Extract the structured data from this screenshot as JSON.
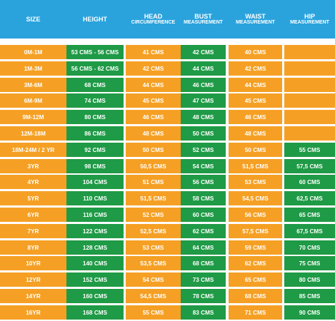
{
  "headers": {
    "size": [
      "SIZE"
    ],
    "height": [
      "HEIGHT"
    ],
    "head": [
      "HEAD",
      "CIRCUMFERENCE"
    ],
    "bust": [
      "BUST",
      "MEASUREMENT"
    ],
    "waist": [
      "WAIST",
      "MEASUREMENT"
    ],
    "hip": [
      "HIP",
      "MEASUREMENT"
    ]
  },
  "colors": {
    "header": "#2aa3dd",
    "orange": "#f5a024",
    "green": "#1f9a46",
    "text": "#ffffff"
  },
  "rows": [
    {
      "size": "0M-1M",
      "height": "53 CMS - 56 CMS",
      "head": "41 CMS",
      "bust": "42 CMS",
      "waist": "40 CMS",
      "hip": ""
    },
    {
      "size": "1M-3M",
      "height": "56 CMS - 62 CMS",
      "head": "42 CMS",
      "bust": "44 CMS",
      "waist": "42 CMS",
      "hip": ""
    },
    {
      "size": "3M-6M",
      "height": "68 CMS",
      "head": "44 CMS",
      "bust": "46 CMS",
      "waist": "44 CMS",
      "hip": ""
    },
    {
      "size": "6M-9M",
      "height": "74 CMS",
      "head": "45 CMS",
      "bust": "47 CMS",
      "waist": "45 CMS",
      "hip": ""
    },
    {
      "size": "9M-12M",
      "height": "80 CMS",
      "head": "46 CMS",
      "bust": "48 CMS",
      "waist": "46 CMS",
      "hip": ""
    },
    {
      "size": "12M-18M",
      "height": "86 CMS",
      "head": "48 CMS",
      "bust": "50 CMS",
      "waist": "48 CMS",
      "hip": ""
    },
    {
      "size": "18M-24M / 2 YR",
      "height": "92 CMS",
      "head": "50 CMS",
      "bust": "52 CMS",
      "waist": "50 CMS",
      "hip": "55 CMS"
    },
    {
      "size": "3YR",
      "height": "98 CMS",
      "head": "50,5 CMS",
      "bust": "54 CMS",
      "waist": "51,5 CMS",
      "hip": "57,5 CMS"
    },
    {
      "size": "4YR",
      "height": "104 CMS",
      "head": "51 CMS",
      "bust": "56 CMS",
      "waist": "53 CMS",
      "hip": "60 CMS"
    },
    {
      "size": "5YR",
      "height": "110 CMS",
      "head": "51,5 CMS",
      "bust": "58 CMS",
      "waist": "54,5 CMS",
      "hip": "62,5 CMS"
    },
    {
      "size": "6YR",
      "height": "116 CMS",
      "head": "52 CMS",
      "bust": "60 CMS",
      "waist": "56 CMS",
      "hip": "65 CMS"
    },
    {
      "size": "7YR",
      "height": "122 CMS",
      "head": "52,5 CMS",
      "bust": "62 CMS",
      "waist": "57,5 CMS",
      "hip": "67,5 CMS"
    },
    {
      "size": "8YR",
      "height": "128 CMS",
      "head": "53 CMS",
      "bust": "64 CMS",
      "waist": "59 CMS",
      "hip": "70 CMS"
    },
    {
      "size": "10YR",
      "height": "140 CMS",
      "head": "53,5 CMS",
      "bust": "68 CMS",
      "waist": "62 CMS",
      "hip": "75 CMS"
    },
    {
      "size": "12YR",
      "height": "152 CMS",
      "head": "54 CMS",
      "bust": "73 CMS",
      "waist": "65 CMS",
      "hip": "80 CMS"
    },
    {
      "size": "14YR",
      "height": "160 CMS",
      "head": "54,5 CMS",
      "bust": "78 CMS",
      "waist": "68 CMS",
      "hip": "85 CMS"
    },
    {
      "size": "16YR",
      "height": "168 CMS",
      "head": "55 CMS",
      "bust": "83 CMS",
      "waist": "71 CMS",
      "hip": "90 CMS"
    }
  ]
}
